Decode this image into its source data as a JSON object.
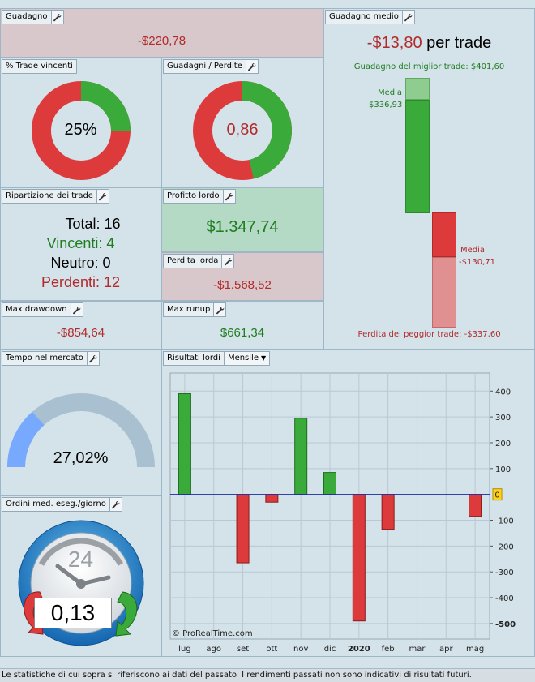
{
  "gain": {
    "title": "Guadagno",
    "value": "-$220,78"
  },
  "win_pct": {
    "title": "% Trade vincenti",
    "value": "25%",
    "fraction": 0.25
  },
  "gain_loss": {
    "title": "Guadagni / Perdite",
    "value": "0,86",
    "ratio": 0.86
  },
  "breakdown": {
    "title": "Ripartizione dei trade",
    "total": "Total: 16",
    "winners": "Vincenti: 4",
    "neutral": "Neutro: 0",
    "losers": "Perdenti: 12"
  },
  "gross_profit": {
    "title": "Profitto lordo",
    "value": "$1.347,74"
  },
  "gross_loss": {
    "title": "Perdita lorda",
    "value": "-$1.568,52"
  },
  "max_drawdown": {
    "title": "Max drawdown",
    "value": "-$854,64"
  },
  "max_runup": {
    "title": "Max runup",
    "value": "$661,34"
  },
  "avg_gain": {
    "title": "Guadagno medio",
    "value": "-$13,80",
    "suffix": "per trade",
    "best_label": "Guadagno del miglior trade: $401,60",
    "worst_label": "Perdita del peggior trade: -$337,60",
    "avg_win_label": "Media",
    "avg_win_value": "$336,93",
    "avg_loss_label": "Media",
    "avg_loss_value": "-$130,71"
  },
  "time_in_market": {
    "title": "Tempo nel mercato",
    "value": "27,02%",
    "fraction": 0.2702
  },
  "orders_per_day": {
    "title": "Ordini med. eseg./giorno",
    "value": "0,13",
    "clock_number": "24"
  },
  "gross_results": {
    "title": "Risultati lordi",
    "period_select": "Mensile"
  },
  "chart_data": {
    "type": "bar",
    "categories": [
      "lug",
      "ago",
      "set",
      "ott",
      "nov",
      "dic",
      "2020",
      "feb",
      "mar",
      "apr",
      "mag"
    ],
    "values": [
      390,
      0,
      -265,
      -30,
      295,
      85,
      -490,
      -135,
      0,
      0,
      -85
    ],
    "ylim": [
      -560,
      470
    ],
    "yticks": [
      400,
      300,
      200,
      100,
      -100,
      -200,
      -300,
      -400,
      -500
    ],
    "zero_marker": "0",
    "watermark": "© ProRealTime.com",
    "colors": {
      "positive": "#3aaa3a",
      "negative": "#dd3b3b",
      "zero_line": "#1a2aa8"
    },
    "grid": true
  },
  "footer": {
    "disclaimer": "Le statistiche di cui sopra si riferiscono ai dati del passato. I rendimenti passati non sono indicativi di risultati futuri."
  },
  "colors": {
    "green": "#3aaa3a",
    "red": "#dd3b3b",
    "gauge_blue": "#77aaff",
    "gauge_gray": "#a8c0d0"
  }
}
